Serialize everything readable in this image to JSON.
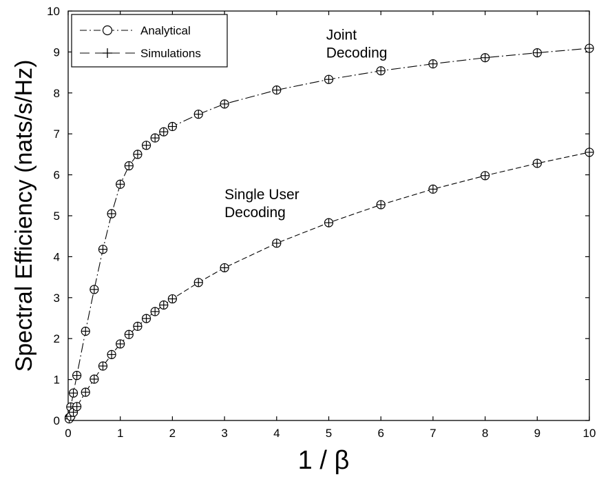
{
  "chart_data": {
    "type": "line",
    "xlabel": "1 / β",
    "ylabel": "Spectral Efficiency (nats/s/Hz)",
    "xlim": [
      0,
      10
    ],
    "ylim": [
      0,
      10
    ],
    "x_ticks": [
      "0",
      "1",
      "2",
      "3",
      "4",
      "5",
      "6",
      "7",
      "8",
      "9",
      "10"
    ],
    "y_ticks": [
      "0",
      "1",
      "2",
      "3",
      "4",
      "5",
      "6",
      "7",
      "8",
      "9",
      "10"
    ],
    "grid": false,
    "legend_position": "top-left",
    "legend": [
      {
        "label": "Analytical",
        "line": "dash-dot",
        "marker": "circle"
      },
      {
        "label": "Simulations",
        "line": "dashed",
        "marker": "plus"
      }
    ],
    "annotations": [
      {
        "lines": [
          "Joint",
          "Decoding"
        ],
        "x": 4.95,
        "y": 9.3
      },
      {
        "lines": [
          "Single User",
          "Decoding"
        ],
        "x": 3.0,
        "y": 5.4
      }
    ],
    "series": [
      {
        "curve": "Joint Decoding",
        "x": [
          0.02,
          0.05,
          0.1,
          0.1667,
          0.3333,
          0.5,
          0.6667,
          0.8333,
          1.0,
          1.1667,
          1.3333,
          1.5,
          1.6667,
          1.8333,
          2.0,
          2.5,
          3,
          4,
          5,
          6,
          7,
          8,
          9,
          10
        ],
        "y": [
          0.07,
          0.33,
          0.67,
          1.1,
          2.18,
          3.2,
          4.18,
          5.05,
          5.77,
          6.22,
          6.5,
          6.72,
          6.9,
          7.05,
          7.18,
          7.48,
          7.73,
          8.07,
          8.33,
          8.54,
          8.71,
          8.86,
          8.98,
          9.09
        ]
      },
      {
        "curve": "Single User Decoding",
        "x": [
          0.02,
          0.05,
          0.1,
          0.1667,
          0.3333,
          0.5,
          0.6667,
          0.8333,
          1.0,
          1.1667,
          1.3333,
          1.5,
          1.6667,
          1.8333,
          2.0,
          2.5,
          3,
          4,
          5,
          6,
          7,
          8,
          9,
          10
        ],
        "y": [
          0.04,
          0.1,
          0.2,
          0.34,
          0.69,
          1.01,
          1.33,
          1.61,
          1.87,
          2.1,
          2.3,
          2.49,
          2.66,
          2.82,
          2.97,
          3.37,
          3.73,
          4.33,
          4.83,
          5.27,
          5.65,
          5.98,
          6.28,
          6.55
        ]
      }
    ]
  }
}
